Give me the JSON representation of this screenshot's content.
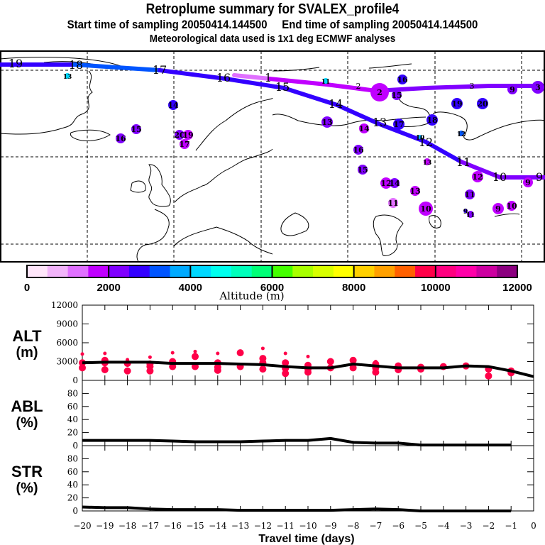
{
  "header": {
    "title": "Retroplume summary for SVALEX_profile4",
    "start_label": "Start time of sampling 20050414.144500",
    "end_label": "End time of sampling 20050414.144500",
    "met_label": "Meteorological data used is 1x1 deg ECMWF analyses"
  },
  "chart_data": [
    {
      "type": "map",
      "name": "retroplume-map",
      "description": "Trajectory map of plume clusters over Greenland/Europe/Siberia, colored by altitude",
      "trajectories": [
        {
          "name": "main-track",
          "labels": [
            "19",
            "18",
            "17",
            "16",
            "15",
            "14",
            "13",
            "12",
            "11",
            "10",
            "9"
          ],
          "color_range": [
            "#3300ff",
            "#8000ff"
          ]
        },
        {
          "name": "upper-track",
          "labels": [
            "1",
            "2",
            "3"
          ],
          "color_range": [
            "#e070ff",
            "#8000ff"
          ]
        }
      ],
      "cluster_markers": [
        {
          "label": "13",
          "color": "#00d8ff"
        },
        {
          "label": "14",
          "color": "#3300ff"
        },
        {
          "label": "15",
          "color": "#8000ff"
        },
        {
          "label": "16",
          "color": "#8000ff"
        },
        {
          "label": "20",
          "color": "#8000ff"
        },
        {
          "label": "19",
          "color": "#c000ff"
        },
        {
          "label": "17",
          "color": "#c000ff"
        },
        {
          "label": "11",
          "color": "#00d8ff"
        },
        {
          "label": "2",
          "color": "#c000ff"
        },
        {
          "label": "16",
          "color": "#3300ff"
        },
        {
          "label": "15",
          "color": "#8000ff"
        },
        {
          "label": "19",
          "color": "#3300ff"
        },
        {
          "label": "20",
          "color": "#3300ff"
        },
        {
          "label": "9",
          "color": "#8000ff"
        },
        {
          "label": "3",
          "color": "#8000ff"
        },
        {
          "label": "13",
          "color": "#8000ff"
        },
        {
          "label": "14",
          "color": "#c000ff"
        },
        {
          "label": "17",
          "color": "#3300ff"
        },
        {
          "label": "18",
          "color": "#3300ff"
        },
        {
          "label": "10",
          "color": "#00aaff"
        },
        {
          "label": "12",
          "color": "#0055ff"
        },
        {
          "label": "16",
          "color": "#8000ff"
        },
        {
          "label": "13",
          "color": "#c000ff"
        },
        {
          "label": "15",
          "color": "#8000ff"
        },
        {
          "label": "12",
          "color": "#c000ff"
        },
        {
          "label": "14",
          "color": "#8000ff"
        },
        {
          "label": "13",
          "color": "#c000ff"
        },
        {
          "label": "11",
          "color": "#e070ff"
        },
        {
          "label": "10",
          "color": "#c000ff"
        },
        {
          "label": "11",
          "color": "#8000ff"
        },
        {
          "label": "12",
          "color": "#c000ff"
        },
        {
          "label": "11",
          "color": "#8000ff"
        },
        {
          "label": "9",
          "color": "#3300ff"
        },
        {
          "label": "9",
          "color": "#c000ff"
        },
        {
          "label": "10",
          "color": "#c000ff"
        },
        {
          "label": "9",
          "color": "#c000ff"
        }
      ]
    },
    {
      "type": "colorbar",
      "name": "altitude-colorbar",
      "xlabel": "Altitude (m)",
      "range": [
        0,
        12000
      ],
      "tick_labels": [
        "0",
        "2000",
        "4000",
        "6000",
        "8000",
        "10000",
        "12000"
      ],
      "colors": [
        "#ffe6fa",
        "#f2b4fa",
        "#e070ff",
        "#c000ff",
        "#8000ff",
        "#3300ff",
        "#0055ff",
        "#00aaff",
        "#00d8ff",
        "#00ffee",
        "#00ffbb",
        "#00ff77",
        "#44ff00",
        "#a8ff00",
        "#d8ff00",
        "#ffff00",
        "#ffd000",
        "#ffa000",
        "#ff6000",
        "#ff0048",
        "#ff0080",
        "#ff00a8",
        "#cc00a0",
        "#8c0080"
      ]
    },
    {
      "type": "line",
      "name": "alt-panel",
      "ylabel": "ALT",
      "yunit": "(m)",
      "ylim": [
        0,
        12000
      ],
      "yticks": [
        "0",
        "3000",
        "6000",
        "9000",
        "12000"
      ],
      "x": [
        -20,
        -19,
        -18,
        -17,
        -16,
        -15,
        -14,
        -13,
        -12,
        -11,
        -10,
        -9,
        -8,
        -7,
        -6,
        -5,
        -4,
        -3,
        -2,
        -1,
        0
      ],
      "series": [
        {
          "name": "mean-altitude",
          "values": [
            2800,
            2900,
            2900,
            2900,
            2700,
            2700,
            2700,
            2600,
            2500,
            2200,
            2000,
            2000,
            2600,
            2300,
            2000,
            2000,
            2000,
            2300,
            2200,
            1500,
            600
          ]
        }
      ],
      "scatter": [
        {
          "x": -20,
          "values": [
            4200,
            2800,
            2000
          ]
        },
        {
          "x": -19,
          "values": [
            4300,
            3200,
            2800,
            1700
          ]
        },
        {
          "x": -18,
          "values": [
            3300,
            2700,
            1500
          ]
        },
        {
          "x": -17,
          "values": [
            3700,
            2600,
            2200,
            1500
          ]
        },
        {
          "x": -16,
          "values": [
            4400,
            3000,
            2200
          ]
        },
        {
          "x": -15,
          "values": [
            4600,
            3800,
            2200
          ]
        },
        {
          "x": -14,
          "values": [
            4300,
            2800,
            2100,
            1600
          ]
        },
        {
          "x": -13,
          "values": [
            4400,
            2200
          ]
        },
        {
          "x": -12,
          "values": [
            5100,
            3500,
            2800,
            1800
          ]
        },
        {
          "x": -11,
          "values": [
            4300,
            2800,
            1900,
            1100
          ]
        },
        {
          "x": -10,
          "values": [
            3800,
            2400,
            1800,
            1300
          ]
        },
        {
          "x": -9,
          "values": [
            3000,
            2000
          ]
        },
        {
          "x": -8,
          "values": [
            3200,
            2000
          ]
        },
        {
          "x": -7,
          "values": [
            3000,
            2600,
            2000,
            1300
          ]
        },
        {
          "x": -6,
          "values": [
            2300,
            1700
          ]
        },
        {
          "x": -5,
          "values": [
            2100,
            1800
          ]
        },
        {
          "x": -4,
          "values": [
            2200
          ]
        },
        {
          "x": -3,
          "values": [
            2300
          ]
        },
        {
          "x": -2,
          "values": [
            1800,
            700
          ]
        },
        {
          "x": -1,
          "values": [
            1500,
            1200
          ]
        }
      ],
      "scatter_color": "#ff0048"
    },
    {
      "type": "line",
      "name": "abl-panel",
      "ylabel": "ABL",
      "yunit": "(%)",
      "ylim": [
        0,
        100
      ],
      "yticks": [
        "0",
        "20",
        "40",
        "60",
        "80"
      ],
      "x": [
        -20,
        -19,
        -18,
        -17,
        -16,
        -15,
        -14,
        -13,
        -12,
        -11,
        -10,
        -9,
        -8,
        -7,
        -6,
        -5,
        -4,
        -3,
        -2,
        -1
      ],
      "series": [
        {
          "name": "abl-fraction",
          "values": [
            8,
            8,
            8,
            8,
            7,
            6,
            6,
            6,
            7,
            8,
            8,
            11,
            5,
            4,
            4,
            1,
            1,
            1,
            1,
            1
          ]
        }
      ]
    },
    {
      "type": "line",
      "name": "str-panel",
      "ylabel": "STR",
      "yunit": "(%)",
      "ylim": [
        0,
        100
      ],
      "yticks": [
        "0",
        "20",
        "40",
        "60",
        "80"
      ],
      "x": [
        -20,
        -19,
        -18,
        -17,
        -16,
        -15,
        -14,
        -13,
        -12,
        -11,
        -10,
        -9,
        -8,
        -7,
        -6,
        -5,
        -4,
        -3,
        -2,
        -1
      ],
      "series": [
        {
          "name": "str-fraction",
          "values": [
            6,
            5,
            5,
            3,
            2,
            2,
            2,
            1,
            1,
            1,
            1,
            1,
            2,
            3,
            2,
            0,
            0,
            0,
            0,
            0
          ]
        }
      ],
      "xlabel": "Travel time (days)",
      "xticks": [
        "-20",
        "-19",
        "-18",
        "-17",
        "-16",
        "-15",
        "-14",
        "-13",
        "-12",
        "-11",
        "-10",
        "-9",
        "-8",
        "-7",
        "-6",
        "-5",
        "-4",
        "-3",
        "-2",
        "-1",
        "0"
      ]
    }
  ]
}
